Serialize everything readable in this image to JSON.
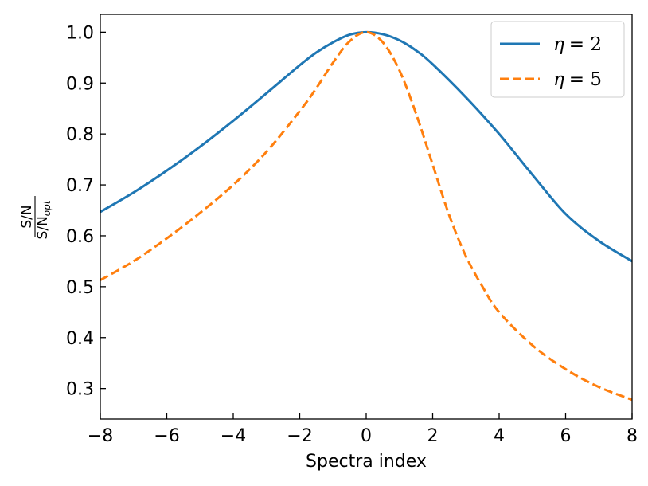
{
  "chart_data": {
    "type": "line",
    "title": "",
    "xlabel": "Spectra index",
    "ylabel": {
      "numerator": "S/N",
      "denominator": "S/N",
      "subscript": "opt"
    },
    "xlim": [
      -8,
      8
    ],
    "ylim": [
      0.24,
      1.035
    ],
    "xticks": [
      -8,
      -6,
      -4,
      -2,
      0,
      2,
      4,
      6,
      8
    ],
    "xtick_labels": [
      "−8",
      "−6",
      "−4",
      "−2",
      "0",
      "2",
      "4",
      "6",
      "8"
    ],
    "yticks": [
      0.3,
      0.4,
      0.5,
      0.6,
      0.7,
      0.8,
      0.9,
      1.0
    ],
    "ytick_labels": [
      "0.3",
      "0.4",
      "0.5",
      "0.6",
      "0.7",
      "0.8",
      "0.9",
      "1.0"
    ],
    "grid": false,
    "legend_position": "top-right",
    "series": [
      {
        "name": "η = 2",
        "legend_symbol": "η",
        "legend_value": "= 2",
        "color": "#1f77b4",
        "style": "solid",
        "x": [
          -8,
          -7,
          -6,
          -5,
          -4,
          -3,
          -2,
          -1.5,
          -1,
          -0.5,
          0,
          0.5,
          1,
          1.5,
          2,
          3,
          4,
          5,
          6,
          7,
          8
        ],
        "y": [
          0.647,
          0.685,
          0.728,
          0.775,
          0.826,
          0.88,
          0.935,
          0.96,
          0.98,
          0.995,
          1.0,
          0.996,
          0.984,
          0.964,
          0.937,
          0.872,
          0.8,
          0.72,
          0.643,
          0.59,
          0.55
        ]
      },
      {
        "name": "η = 5",
        "legend_symbol": "η",
        "legend_value": "= 5",
        "color": "#ff7f0e",
        "style": "dashed",
        "x": [
          -8,
          -7,
          -6,
          -5,
          -4,
          -3,
          -2,
          -1.5,
          -1,
          -0.5,
          0,
          0.5,
          1,
          1.5,
          2,
          2.5,
          3,
          3.5,
          4,
          5,
          6,
          7,
          8
        ],
        "y": [
          0.513,
          0.55,
          0.595,
          0.645,
          0.7,
          0.765,
          0.845,
          0.89,
          0.94,
          0.982,
          1.0,
          0.98,
          0.925,
          0.84,
          0.74,
          0.64,
          0.56,
          0.5,
          0.45,
          0.385,
          0.338,
          0.303,
          0.278
        ]
      }
    ]
  }
}
